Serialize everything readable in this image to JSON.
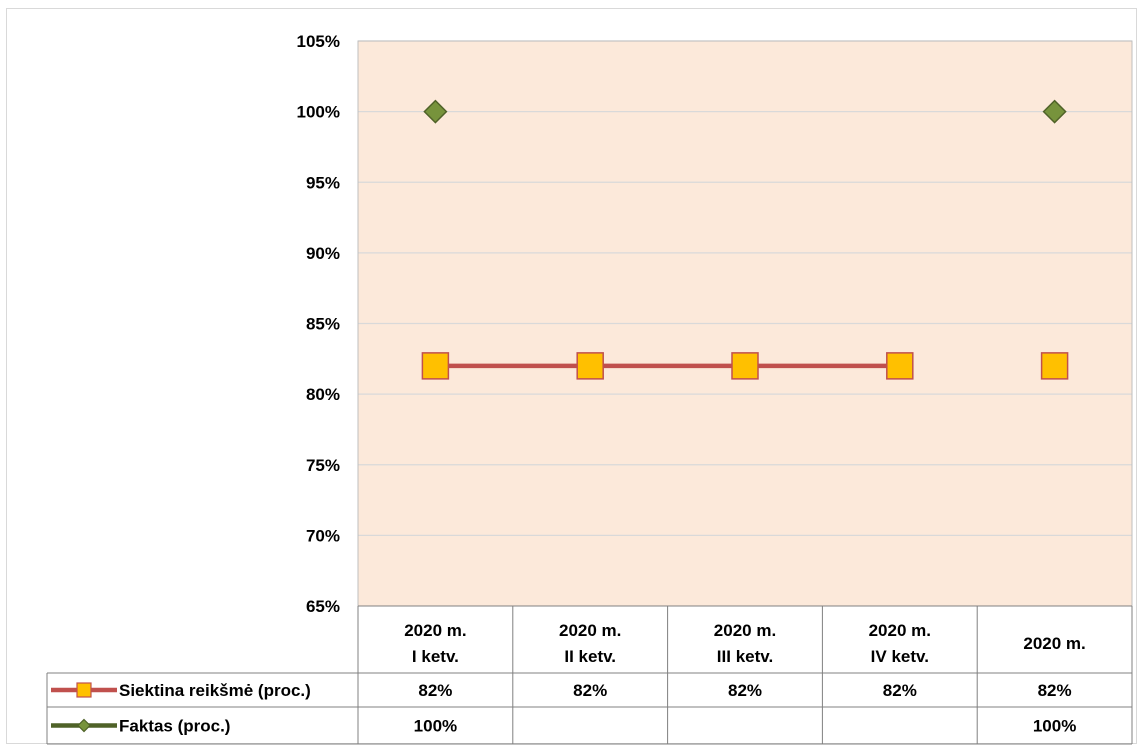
{
  "chart_data": {
    "type": "line",
    "categories": [
      [
        "2020 m.",
        "I ketv."
      ],
      [
        "2020 m.",
        "II ketv."
      ],
      [
        "2020 m.",
        "III ketv."
      ],
      [
        "2020 m.",
        "IV ketv."
      ],
      [
        "2020 m."
      ]
    ],
    "series": [
      {
        "name": "Siektina reikšmė (proc.)",
        "values": [
          82,
          82,
          82,
          82,
          82
        ],
        "labels": [
          "82%",
          "82%",
          "82%",
          "82%",
          "82%"
        ],
        "line_connects_to_index": 3,
        "color": "#c0504d",
        "marker": "square",
        "marker_fill": "#ffc000"
      },
      {
        "name": "Faktas (proc.)",
        "values": [
          100,
          null,
          null,
          null,
          100
        ],
        "labels": [
          "100%",
          "",
          "",
          "",
          "100%"
        ],
        "color": "#4f6228",
        "marker": "diamond",
        "marker_fill": "#77933c"
      }
    ],
    "ylim": [
      65,
      105
    ],
    "yticks": [
      65,
      70,
      75,
      80,
      85,
      90,
      95,
      100,
      105
    ],
    "ytick_labels": [
      "65%",
      "70%",
      "75%",
      "80%",
      "85%",
      "90%",
      "95%",
      "100%",
      "105%"
    ],
    "plot_background": "#fce9da",
    "grid": true,
    "legend": "data-table"
  }
}
